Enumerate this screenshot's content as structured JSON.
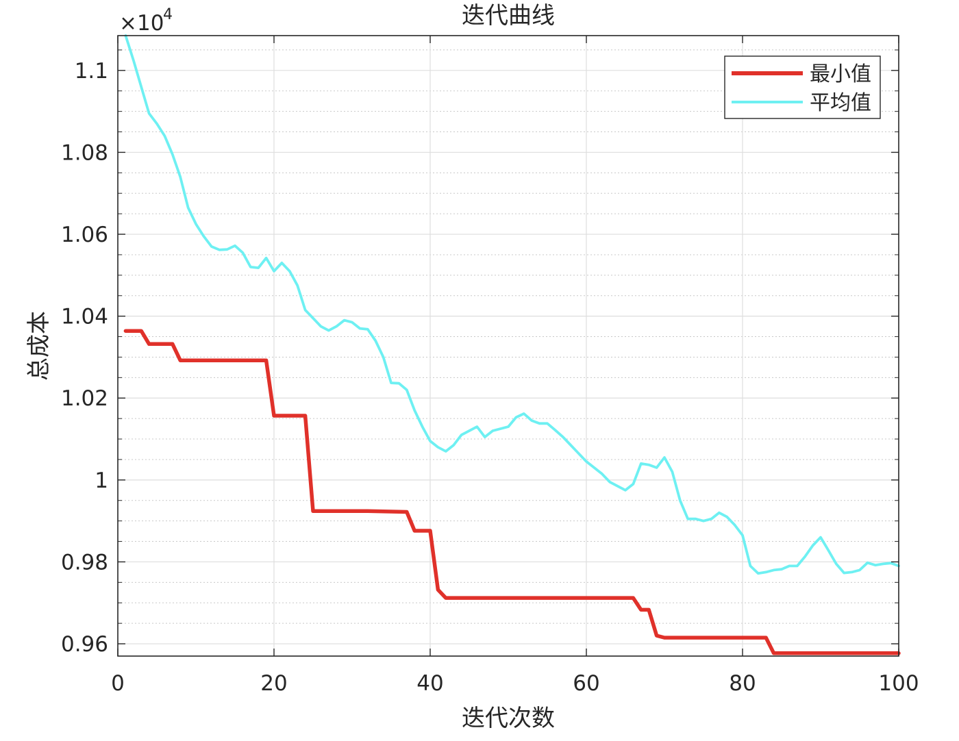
{
  "chart_data": {
    "type": "line",
    "title": "迭代曲线",
    "xlabel": "迭代次数",
    "ylabel": "总成本",
    "exponent_base": "×10",
    "exponent_power": "4",
    "xlim": [
      0,
      100
    ],
    "ylim": [
      0.957,
      1.1085
    ],
    "xticks": [
      0,
      20,
      40,
      60,
      80,
      100
    ],
    "xtick_labels": [
      "0",
      "20",
      "40",
      "60",
      "80",
      "100"
    ],
    "yticks": [
      0.96,
      0.98,
      1.0,
      1.02,
      1.04,
      1.06,
      1.08,
      1.1
    ],
    "ytick_labels": [
      "0.96",
      "0.98",
      "1",
      "1.02",
      "1.04",
      "1.06",
      "1.08",
      "1.1"
    ],
    "grid": true,
    "minor_grid": true,
    "legend_position": "top-right",
    "series": [
      {
        "name": "最小值",
        "color": "#e0312a",
        "x": [
          1,
          3,
          4,
          7,
          8,
          19,
          20,
          24,
          25,
          32,
          37,
          38,
          40,
          41,
          42,
          66,
          67,
          68,
          69,
          70,
          83,
          84,
          100
        ],
        "y": [
          1.0364,
          1.0364,
          1.0332,
          1.0332,
          1.0292,
          1.0292,
          1.0157,
          1.0157,
          0.9924,
          0.9924,
          0.9922,
          0.9876,
          0.9876,
          0.9732,
          0.9712,
          0.9712,
          0.9683,
          0.9683,
          0.962,
          0.9615,
          0.9615,
          0.9577,
          0.9577
        ]
      },
      {
        "name": "平均值",
        "color": "#6ef0f2",
        "x": [
          1,
          2,
          3,
          4,
          5,
          6,
          7,
          8,
          9,
          10,
          11,
          12,
          13,
          14,
          15,
          16,
          17,
          18,
          19,
          20,
          21,
          22,
          23,
          24,
          25,
          26,
          27,
          28,
          29,
          30,
          31,
          32,
          33,
          34,
          35,
          36,
          37,
          38,
          39,
          40,
          41,
          42,
          43,
          44,
          45,
          46,
          47,
          48,
          49,
          50,
          51,
          52,
          53,
          54,
          55,
          56,
          57,
          58,
          59,
          60,
          61,
          62,
          63,
          64,
          65,
          66,
          67,
          68,
          69,
          70,
          71,
          72,
          73,
          74,
          75,
          76,
          77,
          78,
          79,
          80,
          81,
          82,
          83,
          84,
          85,
          86,
          87,
          88,
          89,
          90,
          91,
          92,
          93,
          94,
          95,
          96,
          97,
          98,
          99,
          100
        ],
        "y": [
          1.1085,
          1.1025,
          1.096,
          1.0895,
          1.087,
          1.084,
          1.0795,
          1.074,
          1.0665,
          1.0625,
          1.0595,
          1.057,
          1.0562,
          1.0563,
          1.0572,
          1.0555,
          1.052,
          1.0518,
          1.0542,
          1.051,
          1.053,
          1.051,
          1.0475,
          1.0415,
          1.0395,
          1.0375,
          1.0365,
          1.0375,
          1.039,
          1.0385,
          1.037,
          1.0368,
          1.034,
          1.03,
          1.0237,
          1.0236,
          1.022,
          1.017,
          1.013,
          1.0095,
          1.008,
          1.007,
          1.0085,
          1.011,
          1.012,
          1.013,
          1.0105,
          1.012,
          1.0125,
          1.013,
          1.0153,
          1.0162,
          1.0145,
          1.0138,
          1.0138,
          1.0122,
          1.0105,
          1.0085,
          1.0065,
          1.0045,
          1.003,
          1.0015,
          0.9995,
          0.9985,
          0.9975,
          0.999,
          1.004,
          1.0037,
          1.003,
          1.0055,
          1.002,
          0.995,
          0.9905,
          0.9905,
          0.99,
          0.9905,
          0.992,
          0.991,
          0.989,
          0.9865,
          0.979,
          0.9772,
          0.9775,
          0.978,
          0.9782,
          0.979,
          0.979,
          0.9813,
          0.984,
          0.986,
          0.9828,
          0.9795,
          0.9773,
          0.9775,
          0.978,
          0.9798,
          0.9792,
          0.9795,
          0.9797,
          0.979
        ]
      }
    ]
  }
}
